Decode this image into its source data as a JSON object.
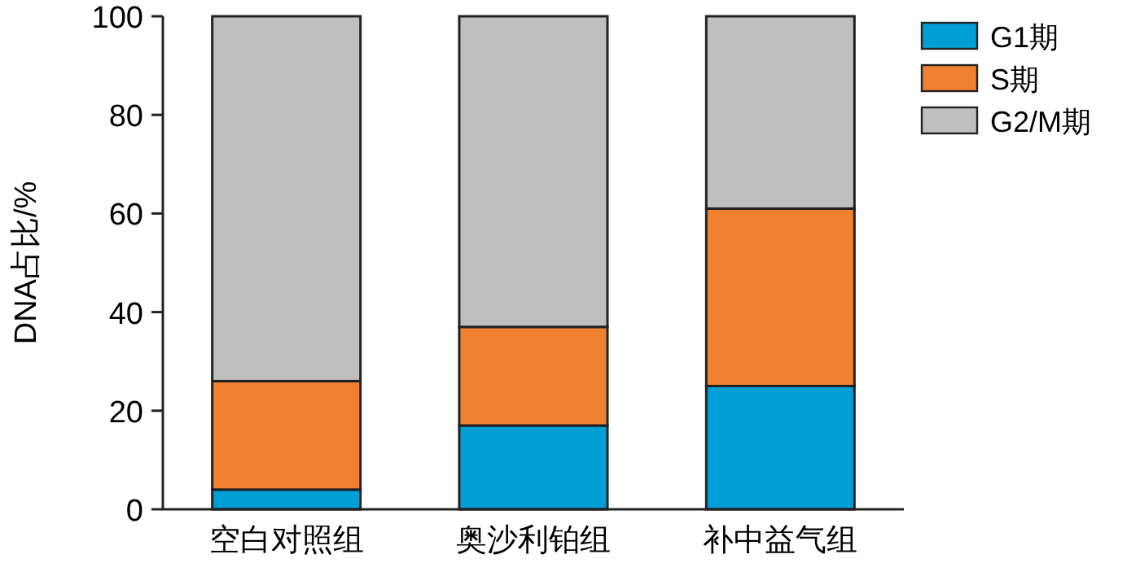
{
  "chart_data": {
    "type": "bar",
    "stacked": true,
    "ylabel": "DNA占比/%",
    "categories": [
      "空白对照组",
      "奥沙利铂组",
      "补中益气组"
    ],
    "series": [
      {
        "name": "G1期",
        "color": "#009fd6",
        "values": [
          4,
          17,
          25
        ]
      },
      {
        "name": "S期",
        "color": "#f08131",
        "values": [
          22,
          20,
          36
        ]
      },
      {
        "name": "G2/M期",
        "color": "#bfbfbf",
        "values": [
          74,
          63,
          39
        ]
      }
    ],
    "ylim": [
      0,
      100
    ],
    "yticks": [
      0,
      20,
      40,
      60,
      80,
      100
    ],
    "legend": "top right",
    "grid": false
  }
}
